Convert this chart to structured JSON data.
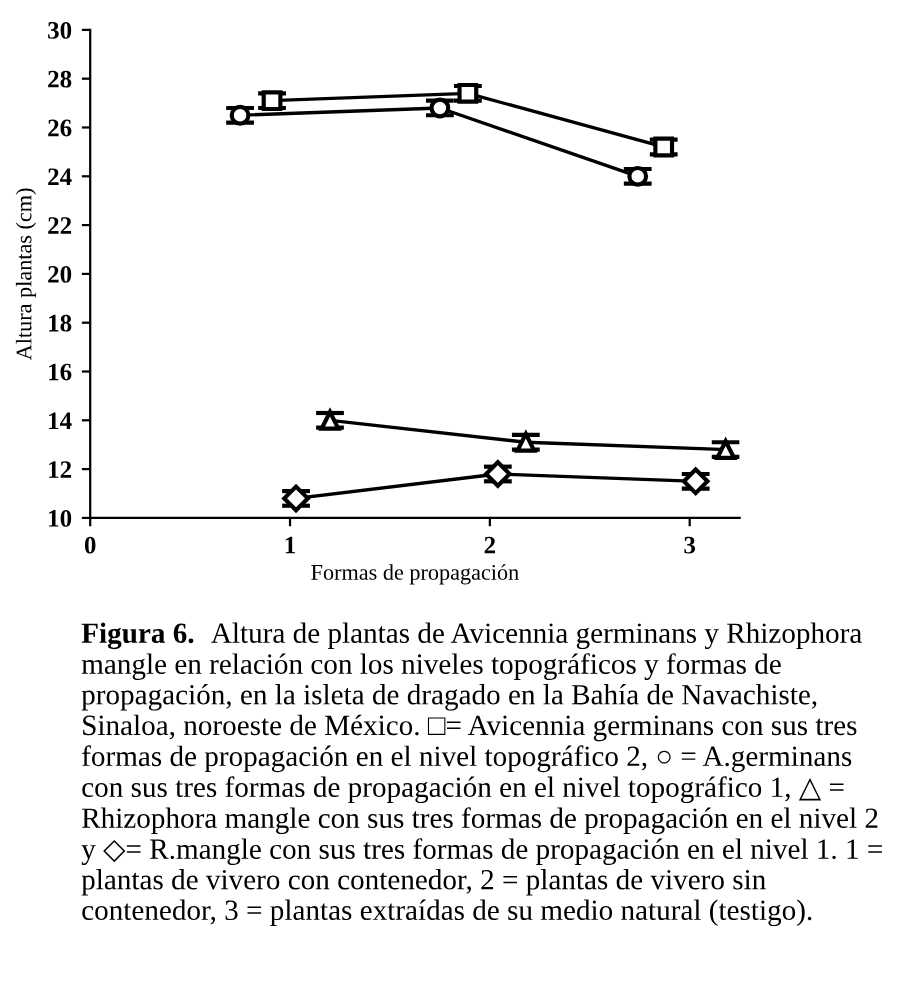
{
  "chart_data": {
    "type": "line",
    "xlabel": "Formas de propagación",
    "ylabel": "Altura plantas (cm)",
    "xlim": [
      0,
      3.25
    ],
    "xticks": [
      0,
      1,
      2,
      3
    ],
    "ylim": [
      10,
      30
    ],
    "yticks": [
      10,
      12,
      14,
      16,
      18,
      20,
      22,
      24,
      26,
      28,
      30
    ],
    "grid": false,
    "series": [
      {
        "color": "#000000",
        "marker": "square",
        "x": [
          0.91,
          1.89,
          2.87
        ],
        "values": [
          27.1,
          27.4,
          25.2
        ],
        "errors": [
          0.3,
          0.3,
          0.3
        ]
      },
      {
        "color": "#000000",
        "marker": "circle",
        "x": [
          0.75,
          1.75,
          2.74
        ],
        "values": [
          26.5,
          26.8,
          24.0
        ],
        "errors": [
          0.3,
          0.3,
          0.3
        ]
      },
      {
        "color": "#000000",
        "marker": "triangle",
        "x": [
          1.2,
          2.18,
          3.18
        ],
        "values": [
          14.0,
          13.1,
          12.8
        ],
        "errors": [
          0.3,
          0.3,
          0.3
        ]
      },
      {
        "color": "#000000",
        "marker": "diamond",
        "x": [
          1.03,
          2.04,
          3.03
        ],
        "values": [
          10.8,
          11.8,
          11.5
        ],
        "errors": [
          0.3,
          0.3,
          0.3
        ]
      }
    ],
    "annotations": [
      "Figura 6.",
      "Altura de plantas de Avicennia germinans y Rhizophora mangle en relación con los niveles topográficos y formas de propagación, en la isleta de dragado en la Bahía de Navachiste, Sinaloa, noroeste de México. □= Avicennia germinans con sus tres formas de propagación en el nivel topográfico 2, ○ = A.germinans con sus tres formas de propagación en el nivel topográfico 1, △ = Rhizophora mangle con sus tres formas de propagación en el nivel 2 y ◇= R.mangle con sus tres formas de propagación en el nivel 1. 1 = plantas de vivero con contenedor, 2 = plantas de vivero sin contenedor, 3 = plantas extraídas de su medio natural (testigo)."
    ]
  }
}
